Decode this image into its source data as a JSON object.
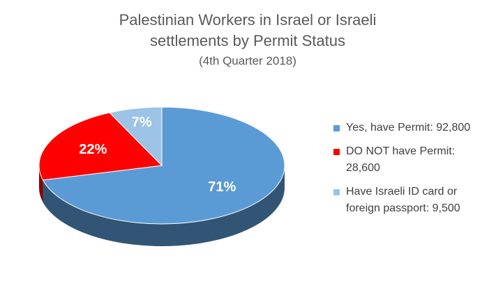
{
  "chart_data": {
    "type": "pie",
    "title": "Palestinian Workers in Israel or Israeli settlements by Permit Status",
    "subtitle": "(4th Quarter 2018)",
    "categories": [
      "Yes, have Permit: 92,800",
      "DO NOT have Permit: 28,600",
      "Have Israeli ID card or foreign passport: 9,500"
    ],
    "values": [
      71,
      22,
      7
    ],
    "value_labels": [
      "71%",
      "22%",
      "7%"
    ],
    "colors": [
      "#5b9bd5",
      "#ff0000",
      "#9dc3e6"
    ],
    "legend": "right"
  }
}
